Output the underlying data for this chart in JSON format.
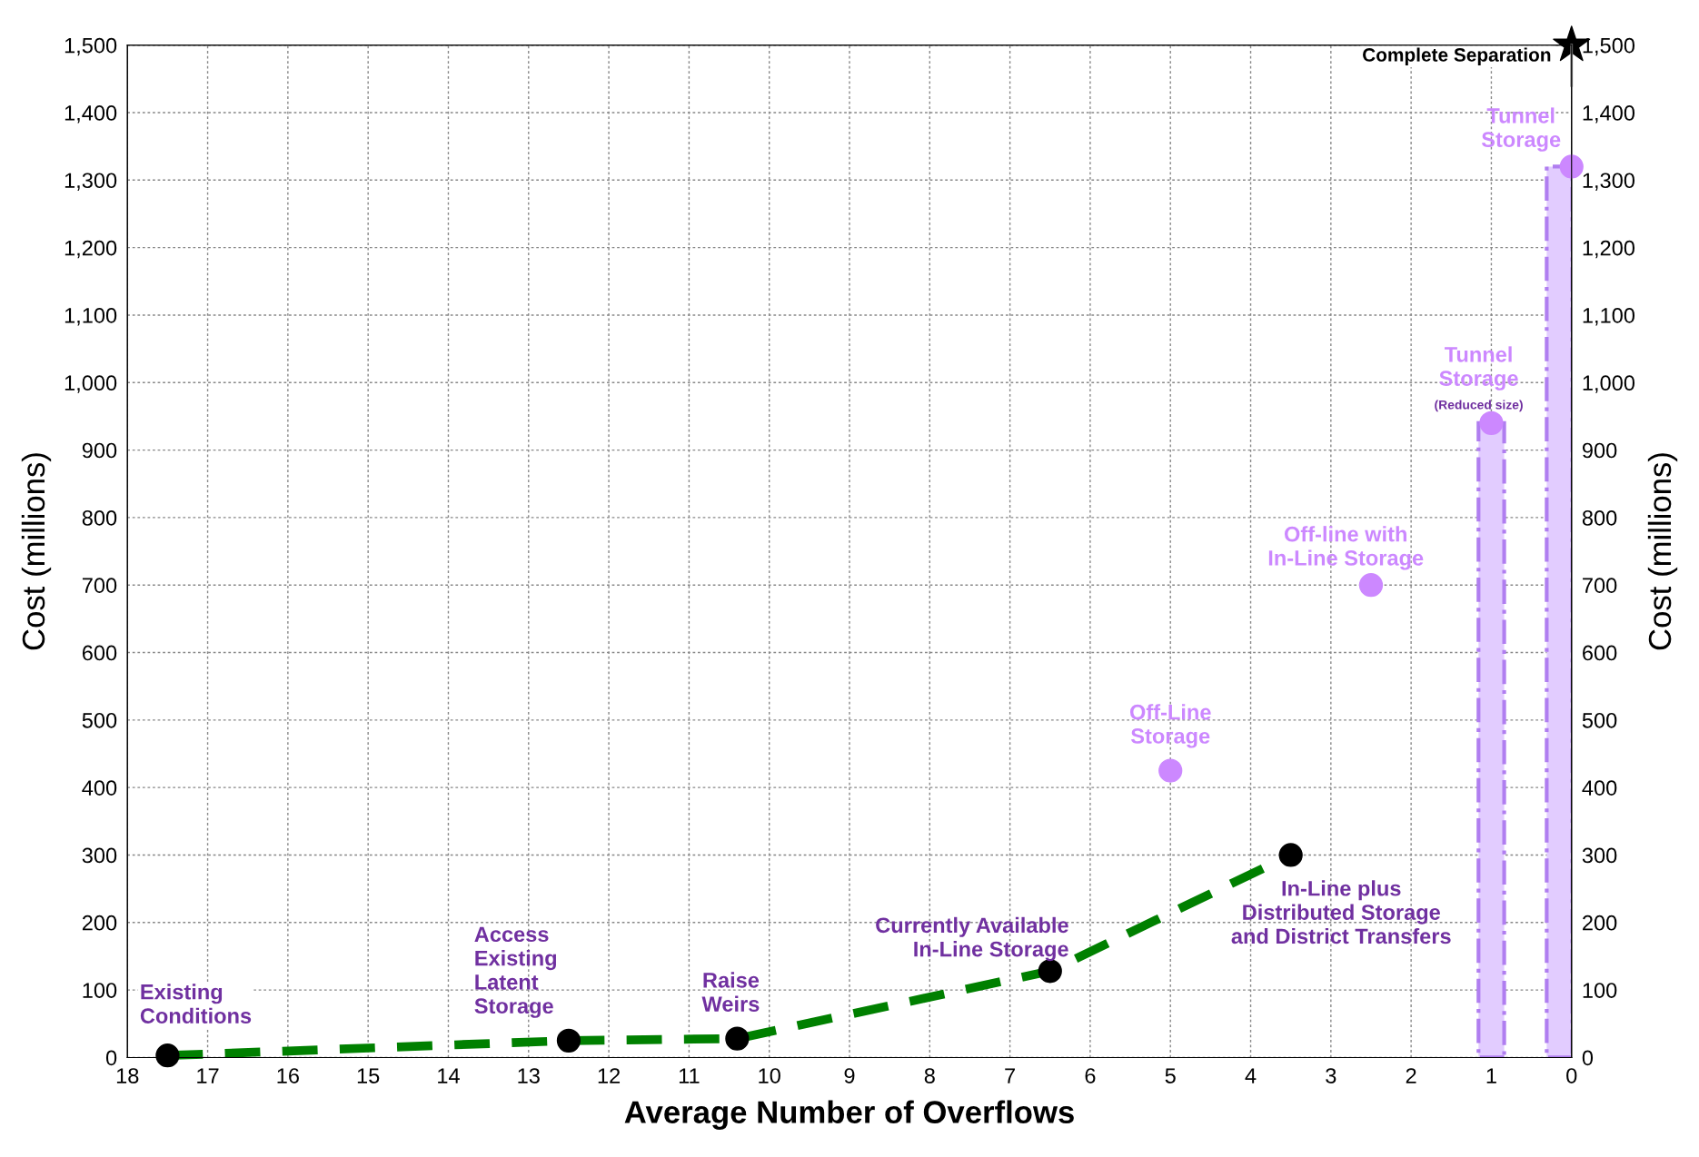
{
  "chart_data": {
    "type": "scatter",
    "xlabel": "Average Number of Overflows",
    "ylabel": "Cost (millions)",
    "y2label": "Cost (millions)",
    "xlim": [
      18,
      0
    ],
    "xticks": [
      18,
      17,
      16,
      15,
      14,
      13,
      12,
      11,
      10,
      9,
      8,
      7,
      6,
      5,
      4,
      3,
      2,
      1,
      0
    ],
    "ylim": [
      0,
      1500
    ],
    "yticks": [
      0,
      100,
      200,
      300,
      400,
      500,
      600,
      700,
      800,
      900,
      {
        "value": 1000,
        "label": "1,000"
      },
      {
        "value": 1100,
        "label": "1,100"
      },
      {
        "value": 1200,
        "label": "1,200"
      },
      {
        "value": 1300,
        "label": "1,300"
      },
      {
        "value": 1400,
        "label": "1,400"
      },
      {
        "value": 1500,
        "label": "1,500"
      }
    ],
    "y2lim": [
      0,
      1500
    ],
    "y2ticks": [
      0,
      100,
      200,
      300,
      400,
      500,
      600,
      700,
      800,
      900,
      {
        "value": 1000,
        "label": "1,000"
      },
      {
        "value": 1100,
        "label": "1,100"
      },
      {
        "value": 1200,
        "label": "1,200"
      },
      {
        "value": 1300,
        "label": "1,300"
      },
      {
        "value": 1400,
        "label": "1,400"
      },
      {
        "value": 1500,
        "label": "1,500"
      }
    ],
    "grid": true,
    "legend": false,
    "series": [
      {
        "type": "bar",
        "color": "#e2ccff",
        "x": [
          1,
          0.15
        ],
        "values": [
          940,
          1320
        ]
      },
      {
        "type": "line",
        "color": "#008000",
        "line_style": "dashed",
        "marker": "none",
        "x": [
          17.5,
          12.5,
          10.4,
          6.5,
          3.5
        ],
        "values": [
          3,
          25,
          28,
          128,
          300
        ]
      },
      {
        "color": "#000000",
        "marker": "circle",
        "x": [
          17.5,
          12.5,
          10.4,
          6.5,
          3.5
        ],
        "values": [
          3,
          25,
          28,
          128,
          300
        ]
      },
      {
        "color": "#cc88ff",
        "marker": "circle",
        "x": [
          5,
          2.5,
          1,
          0
        ],
        "values": [
          425,
          700,
          940,
          1320
        ]
      },
      {
        "type": "line",
        "color": "#808080",
        "line_style": "solid",
        "marker": "none",
        "x": [
          0,
          0
        ],
        "values": [
          1500,
          1440
        ]
      },
      {
        "color": "#000000",
        "marker": "star",
        "x": [
          0
        ],
        "values": [
          1500
        ]
      }
    ],
    "annotations": [
      {
        "text": "Existing\nConditions",
        "x": 17.5,
        "y": 3
      },
      {
        "text": "Access\nExisting\nLatent\nStorage",
        "x": 12.5,
        "y": 25
      },
      {
        "text": "Raise\nWeirs",
        "x": 10.4,
        "y": 28
      },
      {
        "text": "Currently Available\nIn-Line Storage",
        "x": 6.5,
        "y": 128
      },
      {
        "text": "In-Line plus\nDistributed Storage\nand District Transfers",
        "x": 3.5,
        "y": 300
      },
      {
        "text": "Off-Line\nStorage",
        "x": 5,
        "y": 425
      },
      {
        "text": "Off-line with\nIn-Line Storage",
        "x": 2.5,
        "y": 700
      },
      {
        "text": "Tunnel\nStorage",
        "x": 1,
        "y": 940
      },
      {
        "text": "(Reduced size)",
        "x": 1,
        "y": 940
      },
      {
        "text": "Tunnel\nStorage",
        "x": 0,
        "y": 1320
      },
      {
        "text": "Complete Separation",
        "x": 0,
        "y": 1500
      }
    ]
  }
}
